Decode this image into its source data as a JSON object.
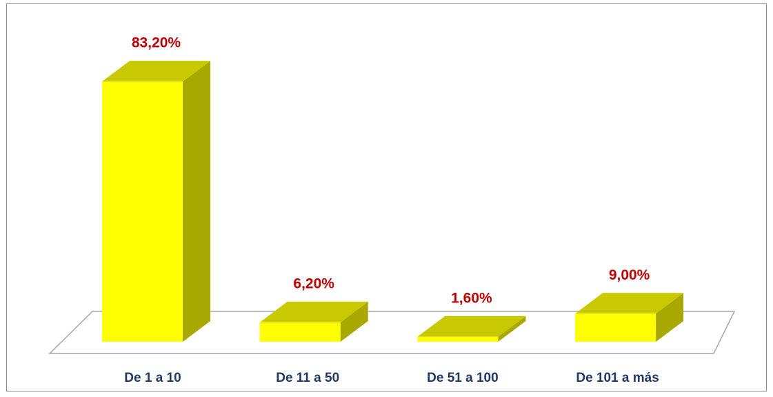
{
  "chart_data": {
    "type": "bar3d",
    "categories": [
      "De 1 a 10",
      "De 11 a 50",
      "De 51 a 100",
      "De 101 a más"
    ],
    "values": [
      83.2,
      6.2,
      1.6,
      9.0
    ],
    "value_labels": [
      "83,20%",
      "6,20%",
      "1,60%",
      "9,00%"
    ],
    "color": "#ffff00"
  }
}
